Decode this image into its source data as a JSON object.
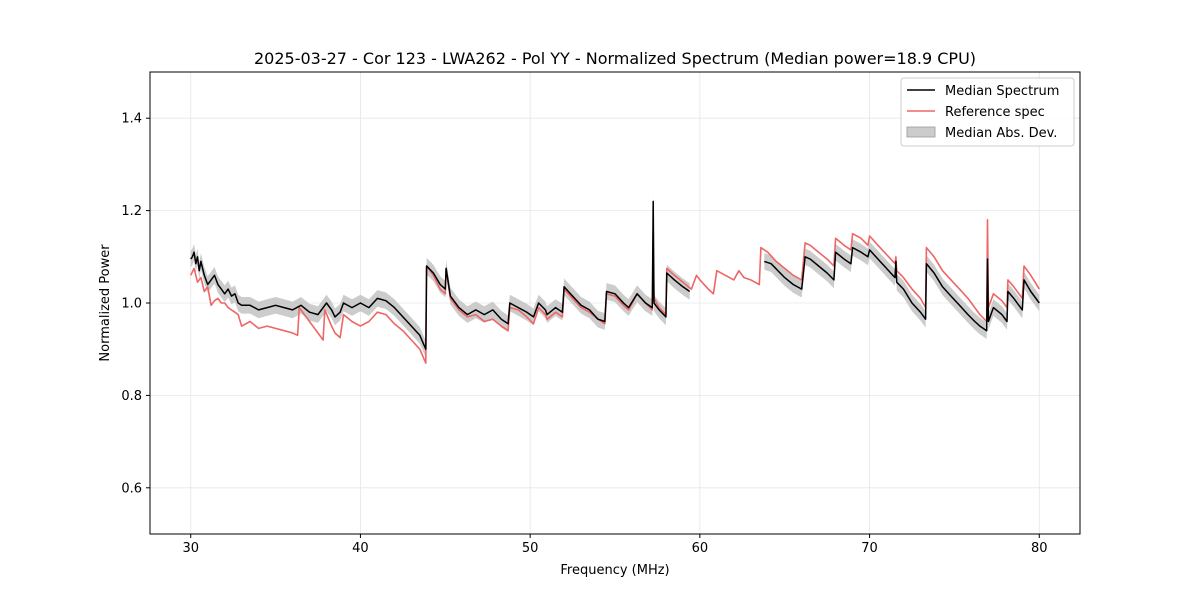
{
  "chart_data": {
    "type": "line",
    "title": "2025-03-27 - Cor 123 - LWA262 - Pol YY - Normalized Spectrum (Median power=18.9 CPU)",
    "xlabel": "Frequency (MHz)",
    "ylabel": "Normalized Power",
    "xlim": [
      27.6,
      82.4
    ],
    "ylim": [
      0.5,
      1.5
    ],
    "xticks": [
      30,
      40,
      50,
      60,
      70,
      80
    ],
    "xtick_labels": [
      "30",
      "40",
      "50",
      "60",
      "70",
      "80"
    ],
    "yticks": [
      0.6,
      0.8,
      1.0,
      1.2,
      1.4
    ],
    "ytick_labels": [
      "0.6",
      "0.8",
      "1.0",
      "1.2",
      "1.4"
    ],
    "grid": true,
    "legend_position": "top-right",
    "series": [
      {
        "name": "Reference spec",
        "color": "#ee6666",
        "x": [
          30.0,
          30.2,
          30.4,
          30.6,
          30.8,
          31.0,
          31.2,
          31.4,
          31.6,
          31.8,
          32.0,
          32.2,
          32.4,
          32.6,
          32.8,
          33.0,
          33.5,
          34.0,
          34.5,
          35.0,
          35.5,
          36.0,
          36.3,
          36.4,
          37.0,
          37.5,
          37.8,
          37.9,
          38.3,
          38.5,
          38.8,
          39.0,
          39.5,
          40.0,
          40.5,
          41.0,
          41.5,
          42.0,
          42.5,
          43.0,
          43.5,
          43.85,
          43.9,
          44.3,
          44.7,
          45.0,
          45.05,
          45.3,
          45.8,
          46.3,
          46.8,
          47.3,
          47.8,
          48.3,
          48.7,
          48.8,
          49.3,
          49.8,
          50.2,
          50.5,
          50.9,
          51.0,
          51.5,
          51.9,
          52.0,
          52.5,
          53.0,
          53.5,
          54.0,
          54.4,
          54.5,
          55.0,
          55.5,
          55.8,
          56.3,
          56.8,
          57.2,
          57.25,
          57.3,
          57.6,
          58.0,
          58.05,
          58.5,
          59.0,
          59.5,
          59.8,
          60.0,
          60.5,
          60.8,
          61.0,
          61.5,
          62.0,
          62.3,
          62.6,
          63.0,
          63.5,
          63.6,
          64.0,
          64.5,
          65.0,
          65.5,
          66.0,
          66.2,
          66.5,
          67.0,
          67.5,
          67.9,
          68.0,
          68.5,
          68.9,
          69.0,
          69.5,
          69.9,
          70.0,
          70.5,
          71.0,
          71.5,
          71.55,
          71.6,
          72.0,
          72.5,
          73.0,
          73.3,
          73.35,
          73.8,
          74.3,
          74.8,
          75.3,
          75.8,
          76.2,
          76.5,
          76.9,
          76.95,
          77.0,
          77.3,
          77.8,
          78.1,
          78.15,
          78.5,
          79.0,
          79.1,
          79.5,
          80.0
        ],
        "values": [
          1.06,
          1.075,
          1.045,
          1.055,
          1.025,
          1.035,
          0.995,
          1.005,
          1.01,
          1.0,
          1.0,
          0.99,
          0.985,
          0.98,
          0.975,
          0.95,
          0.96,
          0.945,
          0.95,
          0.945,
          0.94,
          0.935,
          0.93,
          0.99,
          0.96,
          0.935,
          0.92,
          0.985,
          0.95,
          0.935,
          0.925,
          0.975,
          0.96,
          0.95,
          0.96,
          0.98,
          0.975,
          0.955,
          0.94,
          0.92,
          0.9,
          0.87,
          1.08,
          1.06,
          1.03,
          1.02,
          1.075,
          1.01,
          0.985,
          0.97,
          0.975,
          0.96,
          0.965,
          0.95,
          0.94,
          0.99,
          0.985,
          0.97,
          0.955,
          0.99,
          0.975,
          0.965,
          0.98,
          0.97,
          1.03,
          1.01,
          0.99,
          0.98,
          0.965,
          0.955,
          1.02,
          1.015,
          0.995,
          0.985,
          1.02,
          1.0,
          0.985,
          1.1,
          1.01,
          0.99,
          0.975,
          1.075,
          1.06,
          1.045,
          1.03,
          1.06,
          1.05,
          1.03,
          1.02,
          1.07,
          1.06,
          1.05,
          1.07,
          1.055,
          1.05,
          1.04,
          1.12,
          1.11,
          1.09,
          1.075,
          1.06,
          1.05,
          1.13,
          1.125,
          1.11,
          1.095,
          1.08,
          1.14,
          1.125,
          1.115,
          1.15,
          1.14,
          1.125,
          1.145,
          1.125,
          1.105,
          1.085,
          1.1,
          1.07,
          1.055,
          1.03,
          1.01,
          0.99,
          1.12,
          1.1,
          1.07,
          1.05,
          1.03,
          1.01,
          0.99,
          0.975,
          0.96,
          1.18,
          0.99,
          1.02,
          1.005,
          0.99,
          1.05,
          1.035,
          1.01,
          1.08,
          1.06,
          1.03
        ]
      },
      {
        "name": "Median Spectrum",
        "color": "#000000",
        "x": [
          30.0,
          30.1,
          30.2,
          30.3,
          30.4,
          30.5,
          30.6,
          30.7,
          30.8,
          31.0,
          31.2,
          31.4,
          31.6,
          31.8,
          32.0,
          32.2,
          32.4,
          32.6,
          32.8,
          33.0,
          33.5,
          34.0,
          34.5,
          35.0,
          35.5,
          36.0,
          36.5,
          37.0,
          37.5,
          38.0,
          38.3,
          38.5,
          38.8,
          39.0,
          39.5,
          40.0,
          40.5,
          41.0,
          41.5,
          42.0,
          42.5,
          43.0,
          43.5,
          43.85,
          43.9,
          44.3,
          44.7,
          45.0,
          45.05,
          45.3,
          45.8,
          46.3,
          46.8,
          47.3,
          47.8,
          48.3,
          48.7,
          48.8,
          49.3,
          49.8,
          50.2,
          50.5,
          50.9,
          51.0,
          51.5,
          51.9,
          52.0,
          52.5,
          53.0,
          53.5,
          54.0,
          54.4,
          54.5,
          55.0,
          55.5,
          55.8,
          56.3,
          56.8,
          57.2,
          57.25,
          57.3,
          57.6,
          58.0,
          58.05,
          58.5,
          59.0,
          59.4,
          null,
          63.8,
          64.2,
          64.6,
          65.0,
          65.5,
          66.0,
          66.2,
          66.5,
          67.0,
          67.5,
          67.9,
          68.0,
          68.5,
          68.9,
          69.0,
          69.5,
          69.9,
          70.0,
          70.5,
          71.0,
          71.5,
          71.55,
          71.6,
          72.0,
          72.5,
          73.0,
          73.3,
          73.35,
          73.8,
          74.3,
          74.8,
          75.3,
          75.8,
          76.2,
          76.5,
          76.9,
          76.95,
          77.0,
          77.3,
          77.8,
          78.1,
          78.15,
          78.5,
          79.0,
          79.1,
          79.5,
          80.0
        ],
        "values": [
          1.095,
          1.1,
          1.11,
          1.085,
          1.1,
          1.07,
          1.09,
          1.075,
          1.06,
          1.04,
          1.05,
          1.06,
          1.04,
          1.03,
          1.02,
          1.03,
          1.015,
          1.02,
          1.0,
          0.995,
          0.995,
          0.985,
          0.99,
          0.995,
          0.99,
          0.985,
          0.995,
          0.98,
          0.975,
          1.0,
          0.985,
          0.97,
          0.98,
          1.0,
          0.99,
          1.0,
          0.99,
          1.01,
          1.005,
          0.99,
          0.97,
          0.95,
          0.93,
          0.9,
          1.08,
          1.065,
          1.04,
          1.03,
          1.075,
          1.015,
          0.99,
          0.975,
          0.985,
          0.975,
          0.985,
          0.965,
          0.955,
          1.0,
          0.99,
          0.98,
          0.97,
          1.0,
          0.985,
          0.975,
          0.99,
          0.98,
          1.035,
          1.015,
          0.995,
          0.985,
          0.965,
          0.96,
          1.025,
          1.02,
          1.0,
          0.99,
          1.02,
          1.0,
          0.99,
          1.22,
          1.0,
          0.985,
          0.97,
          1.065,
          1.05,
          1.035,
          1.025,
          null,
          1.09,
          1.085,
          1.07,
          1.055,
          1.04,
          1.03,
          1.1,
          1.095,
          1.08,
          1.065,
          1.05,
          1.11,
          1.095,
          1.085,
          1.12,
          1.11,
          1.1,
          1.115,
          1.095,
          1.075,
          1.055,
          1.09,
          1.045,
          1.03,
          1.0,
          0.98,
          0.965,
          1.085,
          1.065,
          1.035,
          1.015,
          0.995,
          0.975,
          0.96,
          0.95,
          0.94,
          1.095,
          0.96,
          0.99,
          0.975,
          0.96,
          1.025,
          1.01,
          0.985,
          1.05,
          1.025,
          1.0
        ]
      }
    ],
    "band": {
      "name": "Median Abs. Dev.",
      "color": "#bbbbbb",
      "half_width": 0.018
    },
    "legend": [
      {
        "label": "Median Spectrum",
        "kind": "line",
        "color": "#000000"
      },
      {
        "label": "Reference spec",
        "kind": "line",
        "color": "#ee6666"
      },
      {
        "label": "Median Abs. Dev.",
        "kind": "patch",
        "color": "#bbbbbb"
      }
    ]
  }
}
